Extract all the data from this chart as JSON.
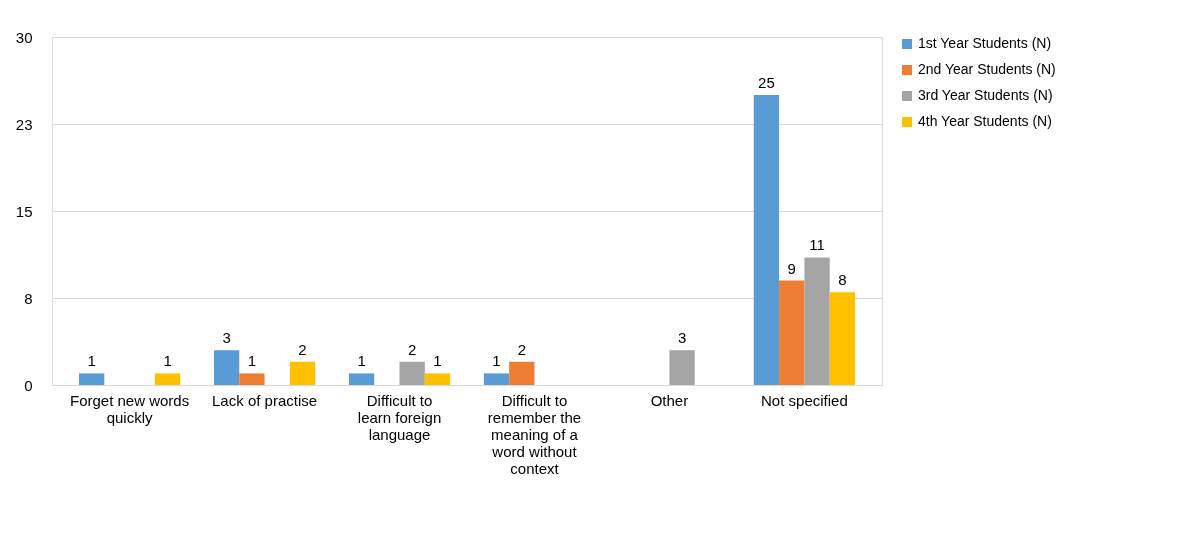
{
  "chart_data": {
    "type": "bar",
    "categories": [
      "Forget new words quickly",
      "Lack of practise",
      "Difficult to learn foreign language",
      "Difficult to remember the meaning of a word without context",
      "Other",
      "Not specified"
    ],
    "series": [
      {
        "name": "1st Year Students (N)",
        "color": "#5b9bd5",
        "values": [
          1,
          3,
          1,
          1,
          null,
          25
        ]
      },
      {
        "name": "2nd Year Students (N)",
        "color": "#ed7d31",
        "values": [
          null,
          1,
          null,
          2,
          null,
          9
        ]
      },
      {
        "name": "3rd Year Students (N)",
        "color": "#a5a5a5",
        "values": [
          null,
          null,
          2,
          null,
          3,
          11
        ]
      },
      {
        "name": "4th Year Students (N)",
        "color": "#ffc000",
        "values": [
          1,
          2,
          1,
          null,
          null,
          8
        ]
      }
    ],
    "ylim": [
      0,
      30
    ],
    "yticks": [
      0,
      {
        "value": 7.5,
        "label": "8"
      },
      15,
      {
        "value": 22.5,
        "label": "23"
      },
      30
    ],
    "grid": "y",
    "legend": "right",
    "data_labels": true
  }
}
